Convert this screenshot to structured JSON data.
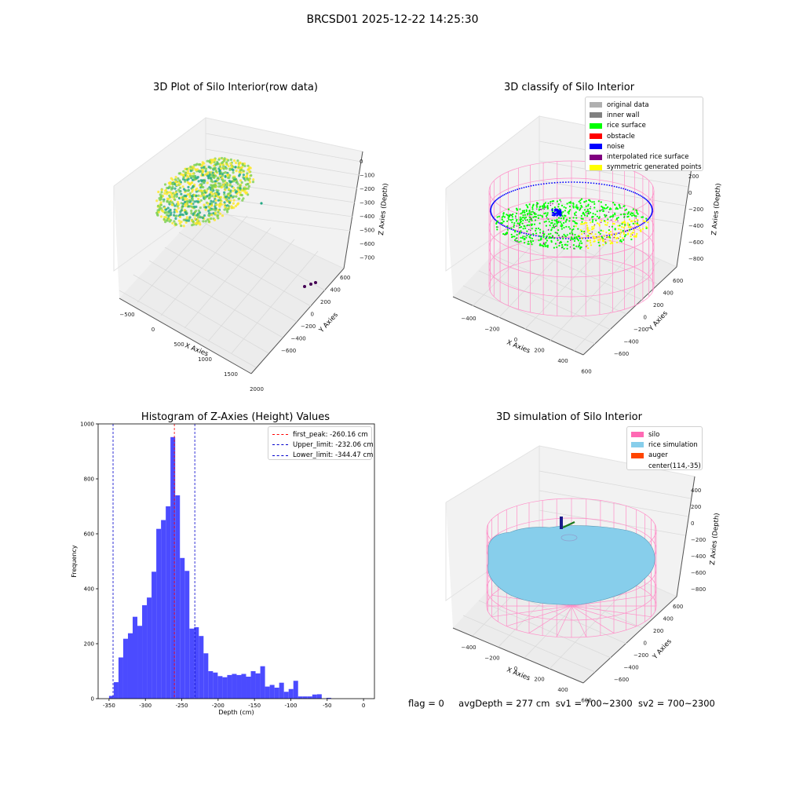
{
  "suptitle": "BRCSD01 2025-12-22 14:25:30",
  "footer": {
    "flag": "flag = 0",
    "avg": "avgDepth = 277 cm",
    "sv1": "sv1 = 700~2300",
    "sv2": "sv2 = 700~2300"
  },
  "chart_data": [
    {
      "type": "scatter",
      "title": "3D Plot of Silo Interior(row data)",
      "xlabel": "X Axies",
      "ylabel": "Y Axies",
      "zlabel": "Z Axies (Depth)",
      "x_ticks": [
        "−500",
        "0",
        "500",
        "1000",
        "1500",
        "2000"
      ],
      "y_ticks": [
        "−600",
        "−400",
        "−200",
        "0",
        "200",
        "400",
        "600"
      ],
      "z_ticks": [
        "0",
        "−100",
        "−200",
        "−300",
        "−400",
        "−500",
        "−600",
        "−700"
      ],
      "colormap": [
        "#fde725",
        "#7ad151",
        "#22a884",
        "#2a788e",
        "#440154"
      ],
      "outliers": [
        {
          "x": 1750,
          "y": 300,
          "z": -700
        },
        {
          "x": 1800,
          "y": 350,
          "z": -700
        },
        {
          "x": 1850,
          "y": 380,
          "z": -700
        }
      ]
    },
    {
      "type": "scatter",
      "title": "3D classify of Silo Interior",
      "xlabel": "X Axies",
      "ylabel": "Y Axies",
      "zlabel": "Z Axies (Depth)",
      "x_ticks": [
        "−400",
        "−200",
        "0",
        "200",
        "400",
        "600"
      ],
      "y_ticks": [
        "−600",
        "−400",
        "−200",
        "0",
        "200",
        "400",
        "600"
      ],
      "z_ticks": [
        "200",
        "0",
        "−200",
        "−400",
        "−600",
        "−800"
      ],
      "z_ticks_partial": [
        "00"
      ],
      "legend": [
        {
          "label": "original data",
          "color": "#b0b0b0"
        },
        {
          "label": "inner wall",
          "color": "#808080"
        },
        {
          "label": "rice surface",
          "color": "#00ff00"
        },
        {
          "label": "obstacle",
          "color": "#ff0000"
        },
        {
          "label": "noise",
          "color": "#0000ff"
        },
        {
          "label": "interpolated rice surface",
          "color": "#800080"
        },
        {
          "label": "symmetric generated points",
          "color": "#ffff00"
        }
      ]
    },
    {
      "type": "bar",
      "title": "Histogram of Z-Axies (Height) Values",
      "xlabel": "Depth (cm)",
      "ylabel": "Frequency",
      "bin_width": 6.5,
      "x_start": -350,
      "values": [
        10,
        60,
        150,
        218,
        238,
        298,
        265,
        340,
        368,
        462,
        618,
        650,
        700,
        952,
        740,
        512,
        465,
        255,
        260,
        228,
        165,
        100,
        95,
        82,
        78,
        86,
        90,
        86,
        90,
        80,
        100,
        92,
        118,
        44,
        50,
        40,
        58,
        25,
        35,
        65,
        8,
        8,
        8,
        15,
        16,
        0,
        3,
        0
      ],
      "xlim": [
        -365,
        15
      ],
      "ylim": [
        0,
        1000
      ],
      "x_ticks": [
        -350,
        -300,
        -250,
        -200,
        -150,
        -100,
        -50,
        0
      ],
      "y_ticks": [
        0,
        200,
        400,
        600,
        800,
        1000
      ],
      "vlines": [
        {
          "label": "first_peak: -260.16 cm",
          "x": -260.16,
          "color": "#ff0000"
        },
        {
          "label": "Upper_limit: -232.06 cm",
          "x": -232.06,
          "color": "#0000cc"
        },
        {
          "label": "Lower_limit: -344.47 cm",
          "x": -344.47,
          "color": "#0000cc"
        }
      ],
      "bar_color": "#4b4bff"
    },
    {
      "type": "scatter",
      "title": "3D simulation of Silo Interior",
      "xlabel": "X Axies",
      "ylabel": "Y Axies",
      "zlabel": "Z Axies (Depth)",
      "x_ticks": [
        "−400",
        "−200",
        "0",
        "200",
        "400",
        "600"
      ],
      "y_ticks": [
        "−600",
        "−400",
        "−200",
        "0",
        "200",
        "400",
        "600"
      ],
      "z_ticks": [
        "400",
        "200",
        "0",
        "−200",
        "−400",
        "−600",
        "−800"
      ],
      "legend": [
        {
          "label": "silo",
          "color": "#ff69b4"
        },
        {
          "label": "rice simulation",
          "color": "#87ceeb"
        },
        {
          "label": "auger",
          "color": "#ff4500"
        },
        {
          "label": "center(114,-35)",
          "color": ""
        }
      ]
    }
  ]
}
